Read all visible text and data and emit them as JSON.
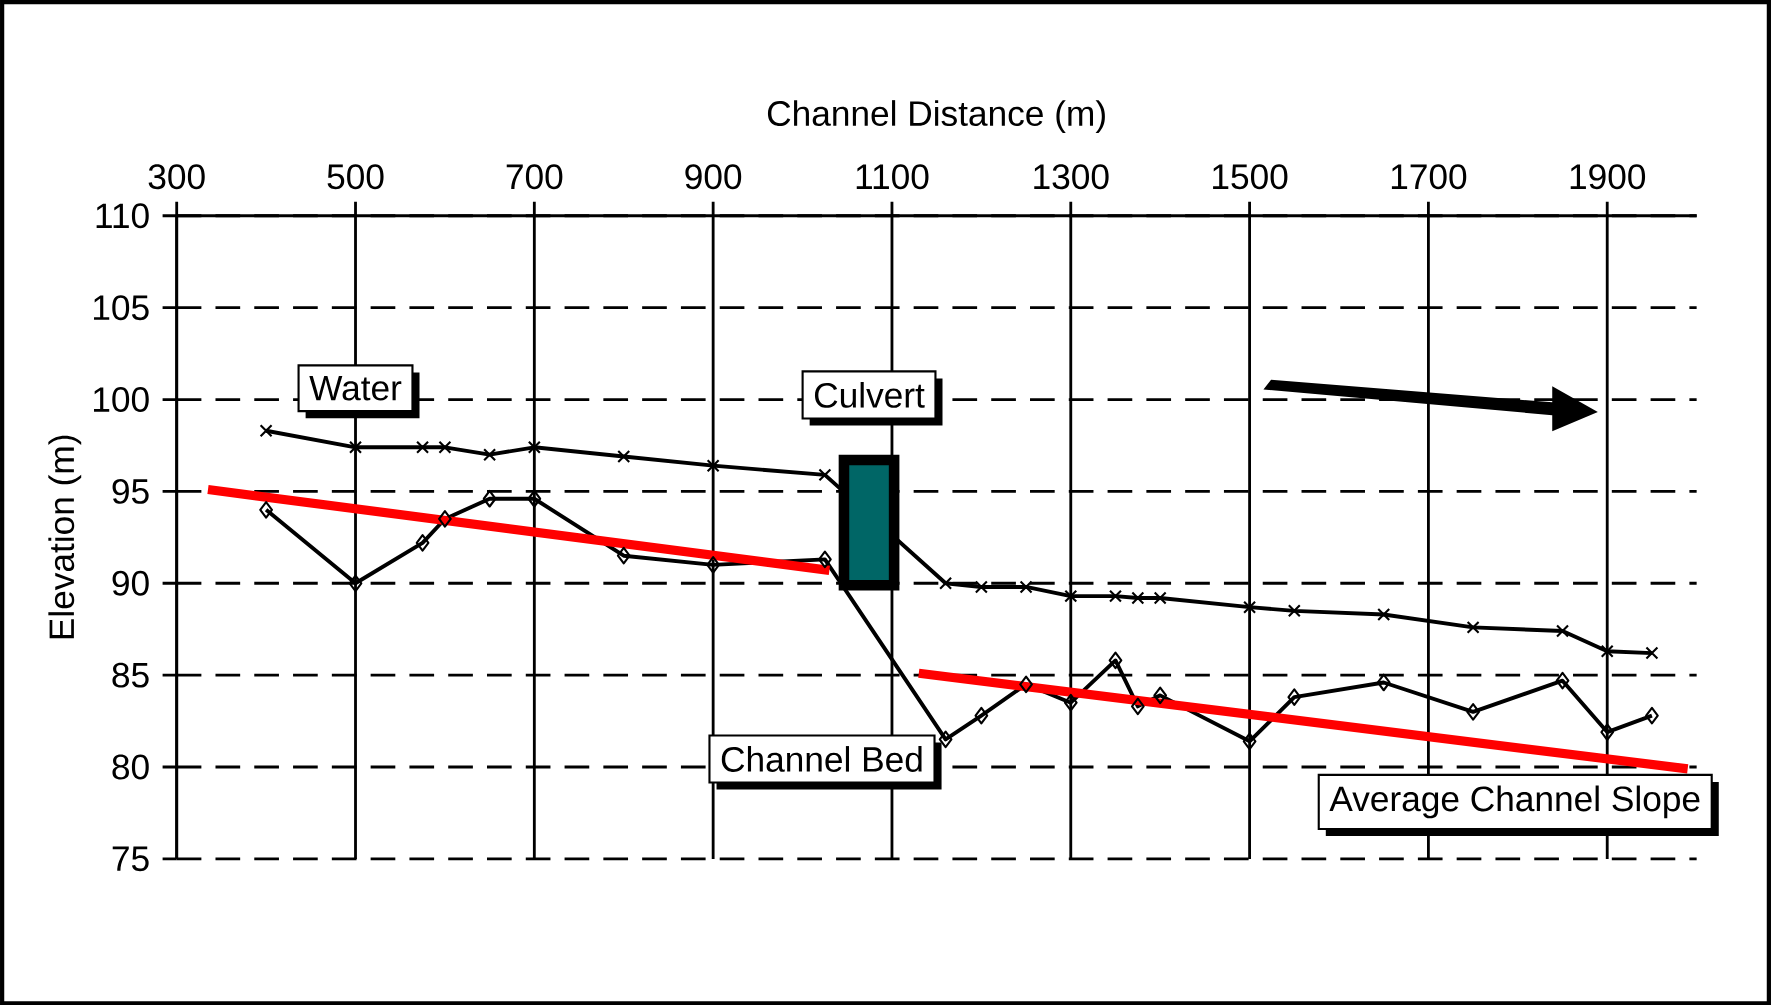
{
  "chart_data": {
    "type": "line",
    "xlabel": "Channel Distance (m)",
    "ylabel": "Elevation (m)",
    "xlim": [
      300,
      2000
    ],
    "xticks": [
      300,
      500,
      700,
      900,
      1100,
      1300,
      1500,
      1700,
      1900
    ],
    "ylim": [
      75,
      110
    ],
    "yticks": [
      75,
      80,
      85,
      90,
      95,
      100,
      105,
      110
    ],
    "grid": true,
    "series": [
      {
        "name": "Water",
        "color": "#000000",
        "marker": "cross",
        "x": [
          400,
          500,
          575,
          600,
          650,
          700,
          800,
          900,
          1025,
          1160,
          1200,
          1250,
          1300,
          1350,
          1375,
          1400,
          1500,
          1550,
          1650,
          1750,
          1850,
          1900,
          1950
        ],
        "values": [
          98.3,
          97.4,
          97.4,
          97.4,
          97.0,
          97.4,
          96.9,
          96.4,
          95.9,
          90.0,
          89.8,
          89.8,
          89.3,
          89.3,
          89.2,
          89.2,
          88.7,
          88.5,
          88.3,
          87.6,
          87.4,
          86.3,
          86.2
        ]
      },
      {
        "name": "Channel Bed",
        "color": "#000000",
        "marker": "diamond",
        "x": [
          400,
          500,
          575,
          600,
          650,
          700,
          800,
          900,
          1025,
          1160,
          1200,
          1250,
          1300,
          1350,
          1375,
          1400,
          1500,
          1550,
          1650,
          1750,
          1850,
          1900,
          1950
        ],
        "values": [
          94.0,
          90.0,
          92.2,
          93.5,
          94.6,
          94.6,
          91.5,
          91.0,
          91.3,
          81.5,
          82.8,
          84.5,
          83.5,
          85.8,
          83.3,
          83.9,
          81.4,
          83.8,
          84.6,
          83.0,
          84.7,
          81.9,
          82.8
        ]
      },
      {
        "name": "Average Channel Slope",
        "color": "#ff0000",
        "marker": "none",
        "x": [
          335,
          1030,
          1065,
          1130,
          1990
        ],
        "values": [
          95.1,
          90.7,
          null,
          85.1,
          79.9
        ]
      }
    ],
    "annotations": [
      "Culvert"
    ]
  }
}
